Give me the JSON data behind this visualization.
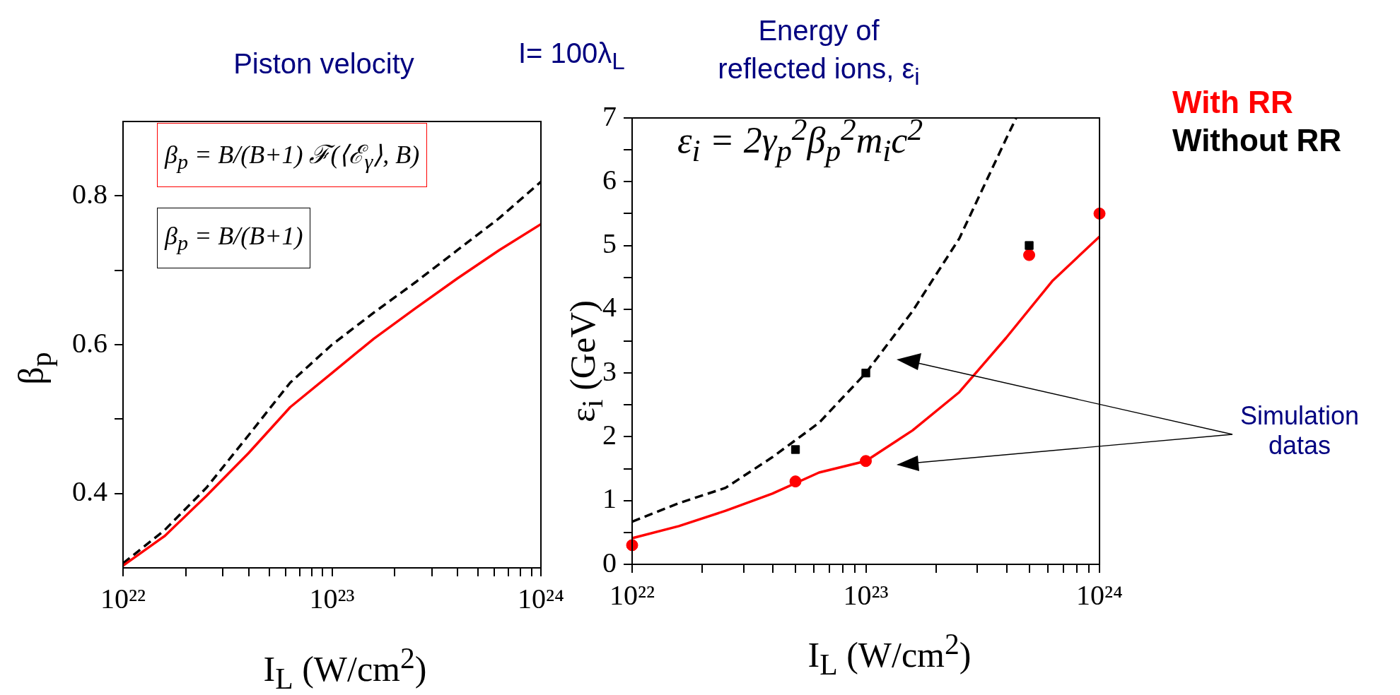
{
  "chart_data": [
    {
      "type": "line",
      "title": "Piston velocity",
      "xlabel": "I$_{L}$ (W/cm$^{2}$)",
      "ylabel": "β$_{p}$",
      "log": "x",
      "grid": false,
      "xlim": [
        1e+22,
        1e+24
      ],
      "ylim": [
        0.3,
        0.9
      ],
      "xticks": [
        {
          "value": 1e+22,
          "label": "10²²"
        },
        {
          "value": 2e+22,
          "label": null
        },
        {
          "value": 3e+22,
          "label": null
        },
        {
          "value": 4e+22,
          "label": null
        },
        {
          "value": 5e+22,
          "label": null
        },
        {
          "value": 6e+22,
          "label": null
        },
        {
          "value": 7e+22,
          "label": null
        },
        {
          "value": 8e+22,
          "label": null
        },
        {
          "value": 9e+22,
          "label": null
        },
        {
          "value": 1e+23,
          "label": "10²³"
        },
        {
          "value": 2e+23,
          "label": null
        },
        {
          "value": 3e+23,
          "label": null
        },
        {
          "value": 4e+23,
          "label": null
        },
        {
          "value": 5e+23,
          "label": null
        },
        {
          "value": 6e+23,
          "label": null
        },
        {
          "value": 7e+23,
          "label": null
        },
        {
          "value": 8e+23,
          "label": null
        },
        {
          "value": 9e+23,
          "label": null
        },
        {
          "value": 1e+24,
          "label": "10²⁴"
        }
      ],
      "yticks": [
        0.4,
        {
          "value": 0.5,
          "label": null
        },
        0.6,
        {
          "value": 0.7,
          "label": null
        },
        0.8
      ],
      "x": [
        1e+22,
        1.585e+22,
        2.512e+22,
        3.981e+22,
        6.31e+22,
        1e+23,
        1.585e+23,
        2.512e+23,
        3.981e+23,
        6.31e+23,
        1e+24
      ],
      "series": [
        {
          "color": "#ff0000",
          "line_style": "solid",
          "marker": "none",
          "values": [
            0.303,
            0.343,
            0.397,
            0.454,
            0.516,
            0.562,
            0.608,
            0.649,
            0.689,
            0.727,
            0.762
          ]
        },
        {
          "color": "#000000",
          "line_style": "dashed",
          "marker": "none",
          "values": [
            0.306,
            0.351,
            0.408,
            0.478,
            0.549,
            0.6,
            0.643,
            0.684,
            0.727,
            0.77,
            0.819
          ]
        }
      ],
      "annotations": [
        "β$_{p}$ = B/(B+1) ℱ(⟨ℰ$_{γ}$⟩, B)",
        "β$_{p}$ = B/(B+1)"
      ]
    },
    {
      "type": "line",
      "title": "Energy of reflected ions, ε$_{i}$",
      "xlabel": "I$_{L}$ (W/cm$^{2}$)",
      "ylabel": "ε$_{i}$ (GeV)",
      "log": "x",
      "grid": false,
      "legend": "right",
      "xlim": [
        1e+22,
        1e+24
      ],
      "ylim": [
        0,
        7
      ],
      "xticks": [
        {
          "value": 1e+22,
          "label": "10²²"
        },
        {
          "value": 2e+22,
          "label": null
        },
        {
          "value": 3e+22,
          "label": null
        },
        {
          "value": 4e+22,
          "label": null
        },
        {
          "value": 5e+22,
          "label": null
        },
        {
          "value": 6e+22,
          "label": null
        },
        {
          "value": 7e+22,
          "label": null
        },
        {
          "value": 8e+22,
          "label": null
        },
        {
          "value": 9e+22,
          "label": null
        },
        {
          "value": 1e+23,
          "label": "10²³"
        },
        {
          "value": 2e+23,
          "label": null
        },
        {
          "value": 3e+23,
          "label": null
        },
        {
          "value": 4e+23,
          "label": null
        },
        {
          "value": 5e+23,
          "label": null
        },
        {
          "value": 6e+23,
          "label": null
        },
        {
          "value": 7e+23,
          "label": null
        },
        {
          "value": 8e+23,
          "label": null
        },
        {
          "value": 9e+23,
          "label": null
        },
        {
          "value": 1e+24,
          "label": "10²⁴"
        }
      ],
      "yticks": [
        0,
        {
          "value": 0.5,
          "label": null
        },
        1,
        {
          "value": 1.5,
          "label": null
        },
        2,
        {
          "value": 2.5,
          "label": null
        },
        3,
        {
          "value": 3.5,
          "label": null
        },
        4,
        {
          "value": 4.5,
          "label": null
        },
        5,
        {
          "value": 5.5,
          "label": null
        },
        6,
        {
          "value": 6.5,
          "label": null
        },
        7
      ],
      "series": [
        {
          "name": "With RR",
          "color": "#ff0000",
          "line_style": "solid",
          "marker": "none",
          "x": [
            1e+22,
            1.585e+22,
            2.512e+22,
            3.981e+22,
            6.31e+22,
            1e+23,
            1.585e+23,
            2.512e+23,
            3.981e+23,
            6.31e+23,
            1e+24
          ],
          "values": [
            0.41,
            0.6,
            0.84,
            1.11,
            1.44,
            1.62,
            2.1,
            2.7,
            3.55,
            4.45,
            5.14
          ]
        },
        {
          "name": "Without RR",
          "color": "#000000",
          "line_style": "dashed",
          "marker": "none",
          "x": [
            1e+22,
            1.585e+22,
            2.512e+22,
            3.981e+22,
            6.31e+22,
            1e+23,
            1.585e+23,
            2.512e+23,
            3.981e+23,
            4.4e+23
          ],
          "values": [
            0.67,
            0.96,
            1.2,
            1.68,
            2.22,
            3.0,
            3.97,
            5.11,
            6.67,
            7
          ]
        },
        {
          "type": "scatter",
          "color": "#000000",
          "marker": "square",
          "x": [
            5e+22,
            1e+23,
            5e+23
          ],
          "values": [
            1.8,
            3.0,
            5.0
          ]
        },
        {
          "type": "scatter",
          "color": "#ff0000",
          "marker": "circle",
          "x": [
            1e+22,
            5e+22,
            1e+23,
            5e+23,
            1e+24
          ],
          "values": [
            0.3,
            1.3,
            1.62,
            4.85,
            5.5
          ]
        }
      ],
      "annotations": [
        "ε$_{i}$ = 2γ$_{p}$$^{2}$β$_{p}$$^{2}$m$_{i}$c$^{2}$",
        "Simulation datas",
        "I= 100λ$_{L}$"
      ]
    }
  ]
}
